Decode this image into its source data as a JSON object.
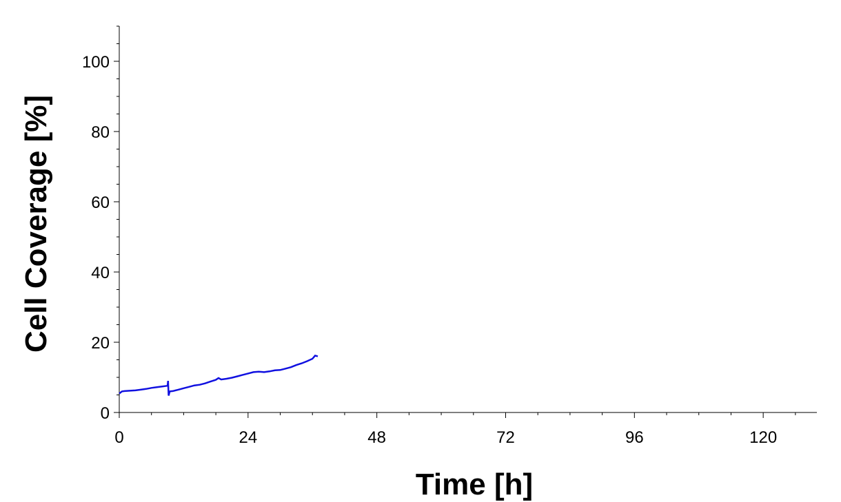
{
  "chart_data": {
    "type": "line",
    "xlabel": "Time [h]",
    "ylabel": "Cell Coverage [%]",
    "x": [
      0,
      0.5,
      1,
      2,
      3,
      4,
      5,
      6,
      7,
      8,
      9,
      9.1,
      9.2,
      9.4,
      10,
      11,
      12,
      13,
      14,
      15,
      16,
      17,
      18,
      18.5,
      19,
      20,
      21,
      22,
      23,
      24,
      25,
      26,
      27,
      28,
      29,
      30,
      31,
      32,
      33,
      34,
      35,
      36,
      36.5,
      37
    ],
    "series": [
      {
        "color": "#1010e0",
        "values": [
          5.4,
          6.0,
          6.1,
          6.2,
          6.3,
          6.5,
          6.7,
          7.0,
          7.2,
          7.4,
          7.6,
          9.0,
          4.8,
          6.0,
          6.1,
          6.5,
          6.9,
          7.3,
          7.7,
          7.9,
          8.3,
          8.8,
          9.3,
          9.8,
          9.4,
          9.6,
          9.9,
          10.3,
          10.7,
          11.1,
          11.5,
          11.6,
          11.5,
          11.7,
          12.0,
          12.1,
          12.5,
          12.9,
          13.5,
          14.0,
          14.6,
          15.3,
          16.2,
          16.0
        ]
      }
    ],
    "xlim": [
      0,
      130
    ],
    "ylim": [
      0,
      110
    ],
    "xticks": [
      0,
      24,
      48,
      72,
      96,
      120
    ],
    "yticks": [
      0,
      20,
      40,
      60,
      80,
      100
    ],
    "xminorticks": [
      6,
      12,
      18,
      30,
      36,
      42,
      54,
      60,
      66,
      78,
      84,
      90,
      102,
      108,
      114,
      126
    ],
    "yminorticks": [
      5,
      10,
      15,
      25,
      30,
      35,
      45,
      50,
      55,
      65,
      70,
      75,
      85,
      90,
      95,
      105,
      110
    ],
    "grid": false
  }
}
